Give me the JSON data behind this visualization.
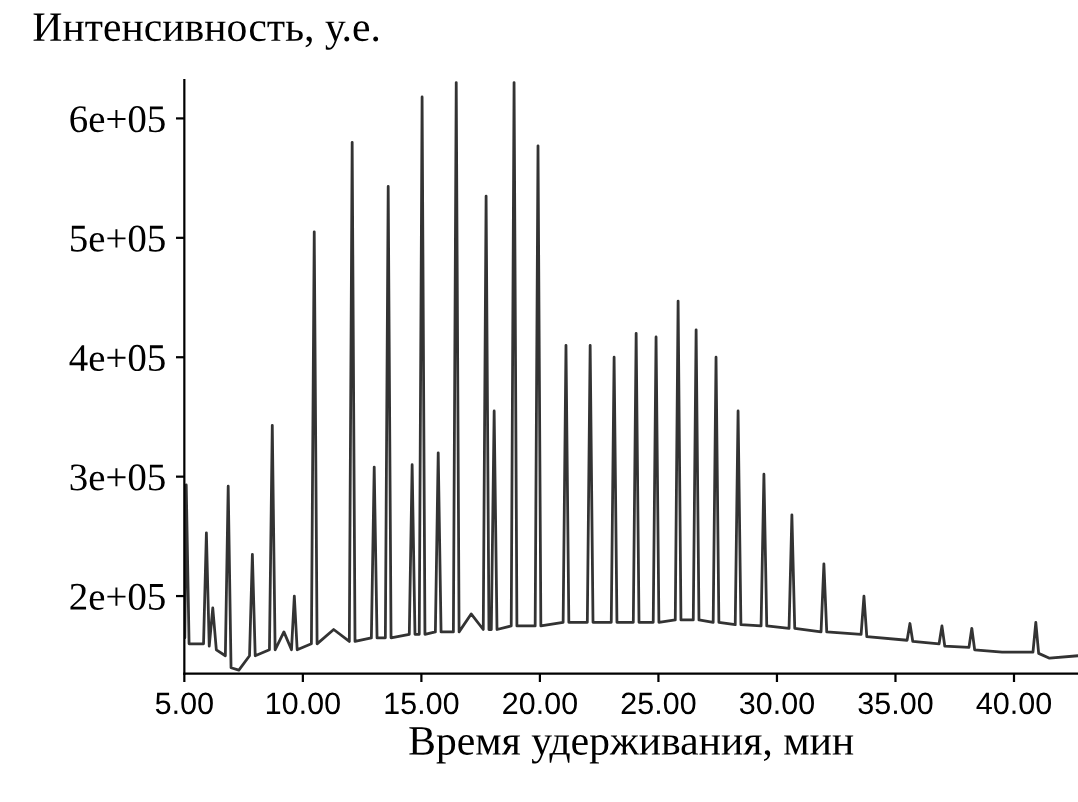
{
  "chart_data": {
    "type": "line",
    "ylabel": "Интенсивность, у.е.",
    "xlabel": "Время удерживания, мин",
    "x": [
      5.0,
      5.02,
      5.08,
      5.2,
      5.81,
      5.93,
      6.05,
      6.2,
      6.35,
      6.73,
      6.85,
      6.97,
      7.3,
      7.75,
      7.87,
      7.99,
      8.59,
      8.71,
      8.83,
      9.2,
      9.52,
      9.64,
      9.76,
      10.36,
      10.48,
      10.6,
      11.3,
      11.96,
      12.08,
      12.2,
      12.89,
      13.01,
      13.13,
      13.48,
      13.6,
      13.72,
      14.49,
      14.61,
      14.73,
      14.91,
      15.03,
      15.15,
      15.59,
      15.71,
      15.83,
      16.35,
      16.47,
      16.59,
      17.1,
      17.61,
      17.73,
      17.85,
      17.95,
      18.07,
      18.19,
      18.79,
      18.91,
      19.03,
      19.8,
      19.92,
      20.04,
      20.98,
      21.1,
      21.22,
      22.0,
      22.12,
      22.24,
      23.01,
      23.13,
      23.25,
      23.94,
      24.06,
      24.18,
      24.78,
      24.9,
      25.02,
      25.71,
      25.83,
      25.95,
      26.47,
      26.59,
      26.71,
      27.31,
      27.43,
      27.55,
      28.24,
      28.36,
      28.48,
      29.33,
      29.45,
      29.57,
      30.51,
      30.63,
      30.75,
      31.86,
      31.98,
      32.1,
      33.55,
      33.67,
      33.79,
      35.49,
      35.61,
      35.73,
      36.84,
      36.96,
      37.08,
      38.1,
      38.22,
      38.34,
      39.5,
      40.8,
      40.92,
      41.04,
      41.5,
      42.7
    ],
    "series": [
      {
        "color": "#333333",
        "values": [
          170000,
          165000,
          293000,
          160000,
          160000,
          253000,
          158000,
          190000,
          155000,
          150000,
          292000,
          140000,
          138000,
          150000,
          235000,
          150000,
          155000,
          343000,
          155000,
          170000,
          155000,
          200000,
          155000,
          160000,
          505000,
          160000,
          172000,
          162000,
          580000,
          162000,
          165000,
          308000,
          165000,
          165000,
          543000,
          165000,
          168000,
          310000,
          168000,
          168000,
          618000,
          168000,
          170000,
          320000,
          170000,
          170000,
          630000,
          170000,
          185000,
          172000,
          535000,
          172000,
          172000,
          355000,
          172000,
          175000,
          630000,
          175000,
          175000,
          577000,
          175000,
          178000,
          410000,
          178000,
          178000,
          410000,
          178000,
          178000,
          400000,
          178000,
          178000,
          420000,
          178000,
          178000,
          417000,
          178000,
          180000,
          447000,
          180000,
          180000,
          423000,
          180000,
          178000,
          400000,
          178000,
          176000,
          355000,
          176000,
          175000,
          302000,
          175000,
          173000,
          268000,
          173000,
          170000,
          227000,
          170000,
          168000,
          200000,
          166000,
          163000,
          177000,
          162000,
          160000,
          175000,
          158000,
          157000,
          173000,
          155000,
          153000,
          153000,
          178000,
          152000,
          148000,
          150000
        ]
      }
    ],
    "xlim": [
      5.0,
      42.7
    ],
    "ylim": [
      135000,
      632000
    ],
    "xticks": [
      {
        "value": 5,
        "label": "5.00"
      },
      {
        "value": 10,
        "label": "10.00"
      },
      {
        "value": 15,
        "label": "15.00"
      },
      {
        "value": 20,
        "label": "20.00"
      },
      {
        "value": 25,
        "label": "25.00"
      },
      {
        "value": 30,
        "label": "30.00"
      },
      {
        "value": 35,
        "label": "35.00"
      },
      {
        "value": 40,
        "label": "40.00"
      }
    ],
    "yticks": [
      {
        "value": 200000,
        "label": "2e+05"
      },
      {
        "value": 300000,
        "label": "3e+05"
      },
      {
        "value": 400000,
        "label": "4e+05"
      },
      {
        "value": 500000,
        "label": "5e+05"
      },
      {
        "value": 600000,
        "label": "6e+05"
      }
    ],
    "grid": false,
    "line_style": "solid"
  }
}
